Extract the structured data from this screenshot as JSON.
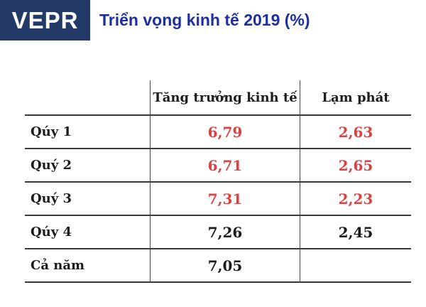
{
  "logo": {
    "text": "VEPR",
    "bg_color": "#233a69",
    "text_color": "#ffffff"
  },
  "title": {
    "text": "Triển vọng kinh tế 2019 (%)",
    "color": "#1e2f9f"
  },
  "table": {
    "columns": [
      "",
      "Tăng trưởng kinh tế",
      "Lạm phát"
    ],
    "highlight_color": "#d94242",
    "normal_color": "#1c1c1c",
    "rows": [
      {
        "label": "Qúy 1",
        "growth": "6,79",
        "inflation": "2,63",
        "highlight": true
      },
      {
        "label": "Quý 2",
        "growth": "6,71",
        "inflation": "2,65",
        "highlight": true
      },
      {
        "label": "Quý 3",
        "growth": "7,31",
        "inflation": "2,23",
        "highlight": true
      },
      {
        "label": "Qúy 4",
        "growth": "7,26",
        "inflation": "2,45",
        "highlight": false
      },
      {
        "label": "Cả năm",
        "growth": "7,05",
        "inflation": "",
        "highlight": false
      }
    ]
  },
  "chart_data": {
    "type": "table",
    "title": "Triển vọng kinh tế 2019 (%)",
    "categories": [
      "Qúy 1",
      "Quý 2",
      "Quý 3",
      "Qúy 4",
      "Cả năm"
    ],
    "series": [
      {
        "name": "Tăng trưởng kinh tế",
        "values": [
          6.79,
          6.71,
          7.31,
          7.26,
          7.05
        ]
      },
      {
        "name": "Lạm phát",
        "values": [
          2.63,
          2.65,
          2.23,
          2.45,
          null
        ]
      }
    ]
  }
}
